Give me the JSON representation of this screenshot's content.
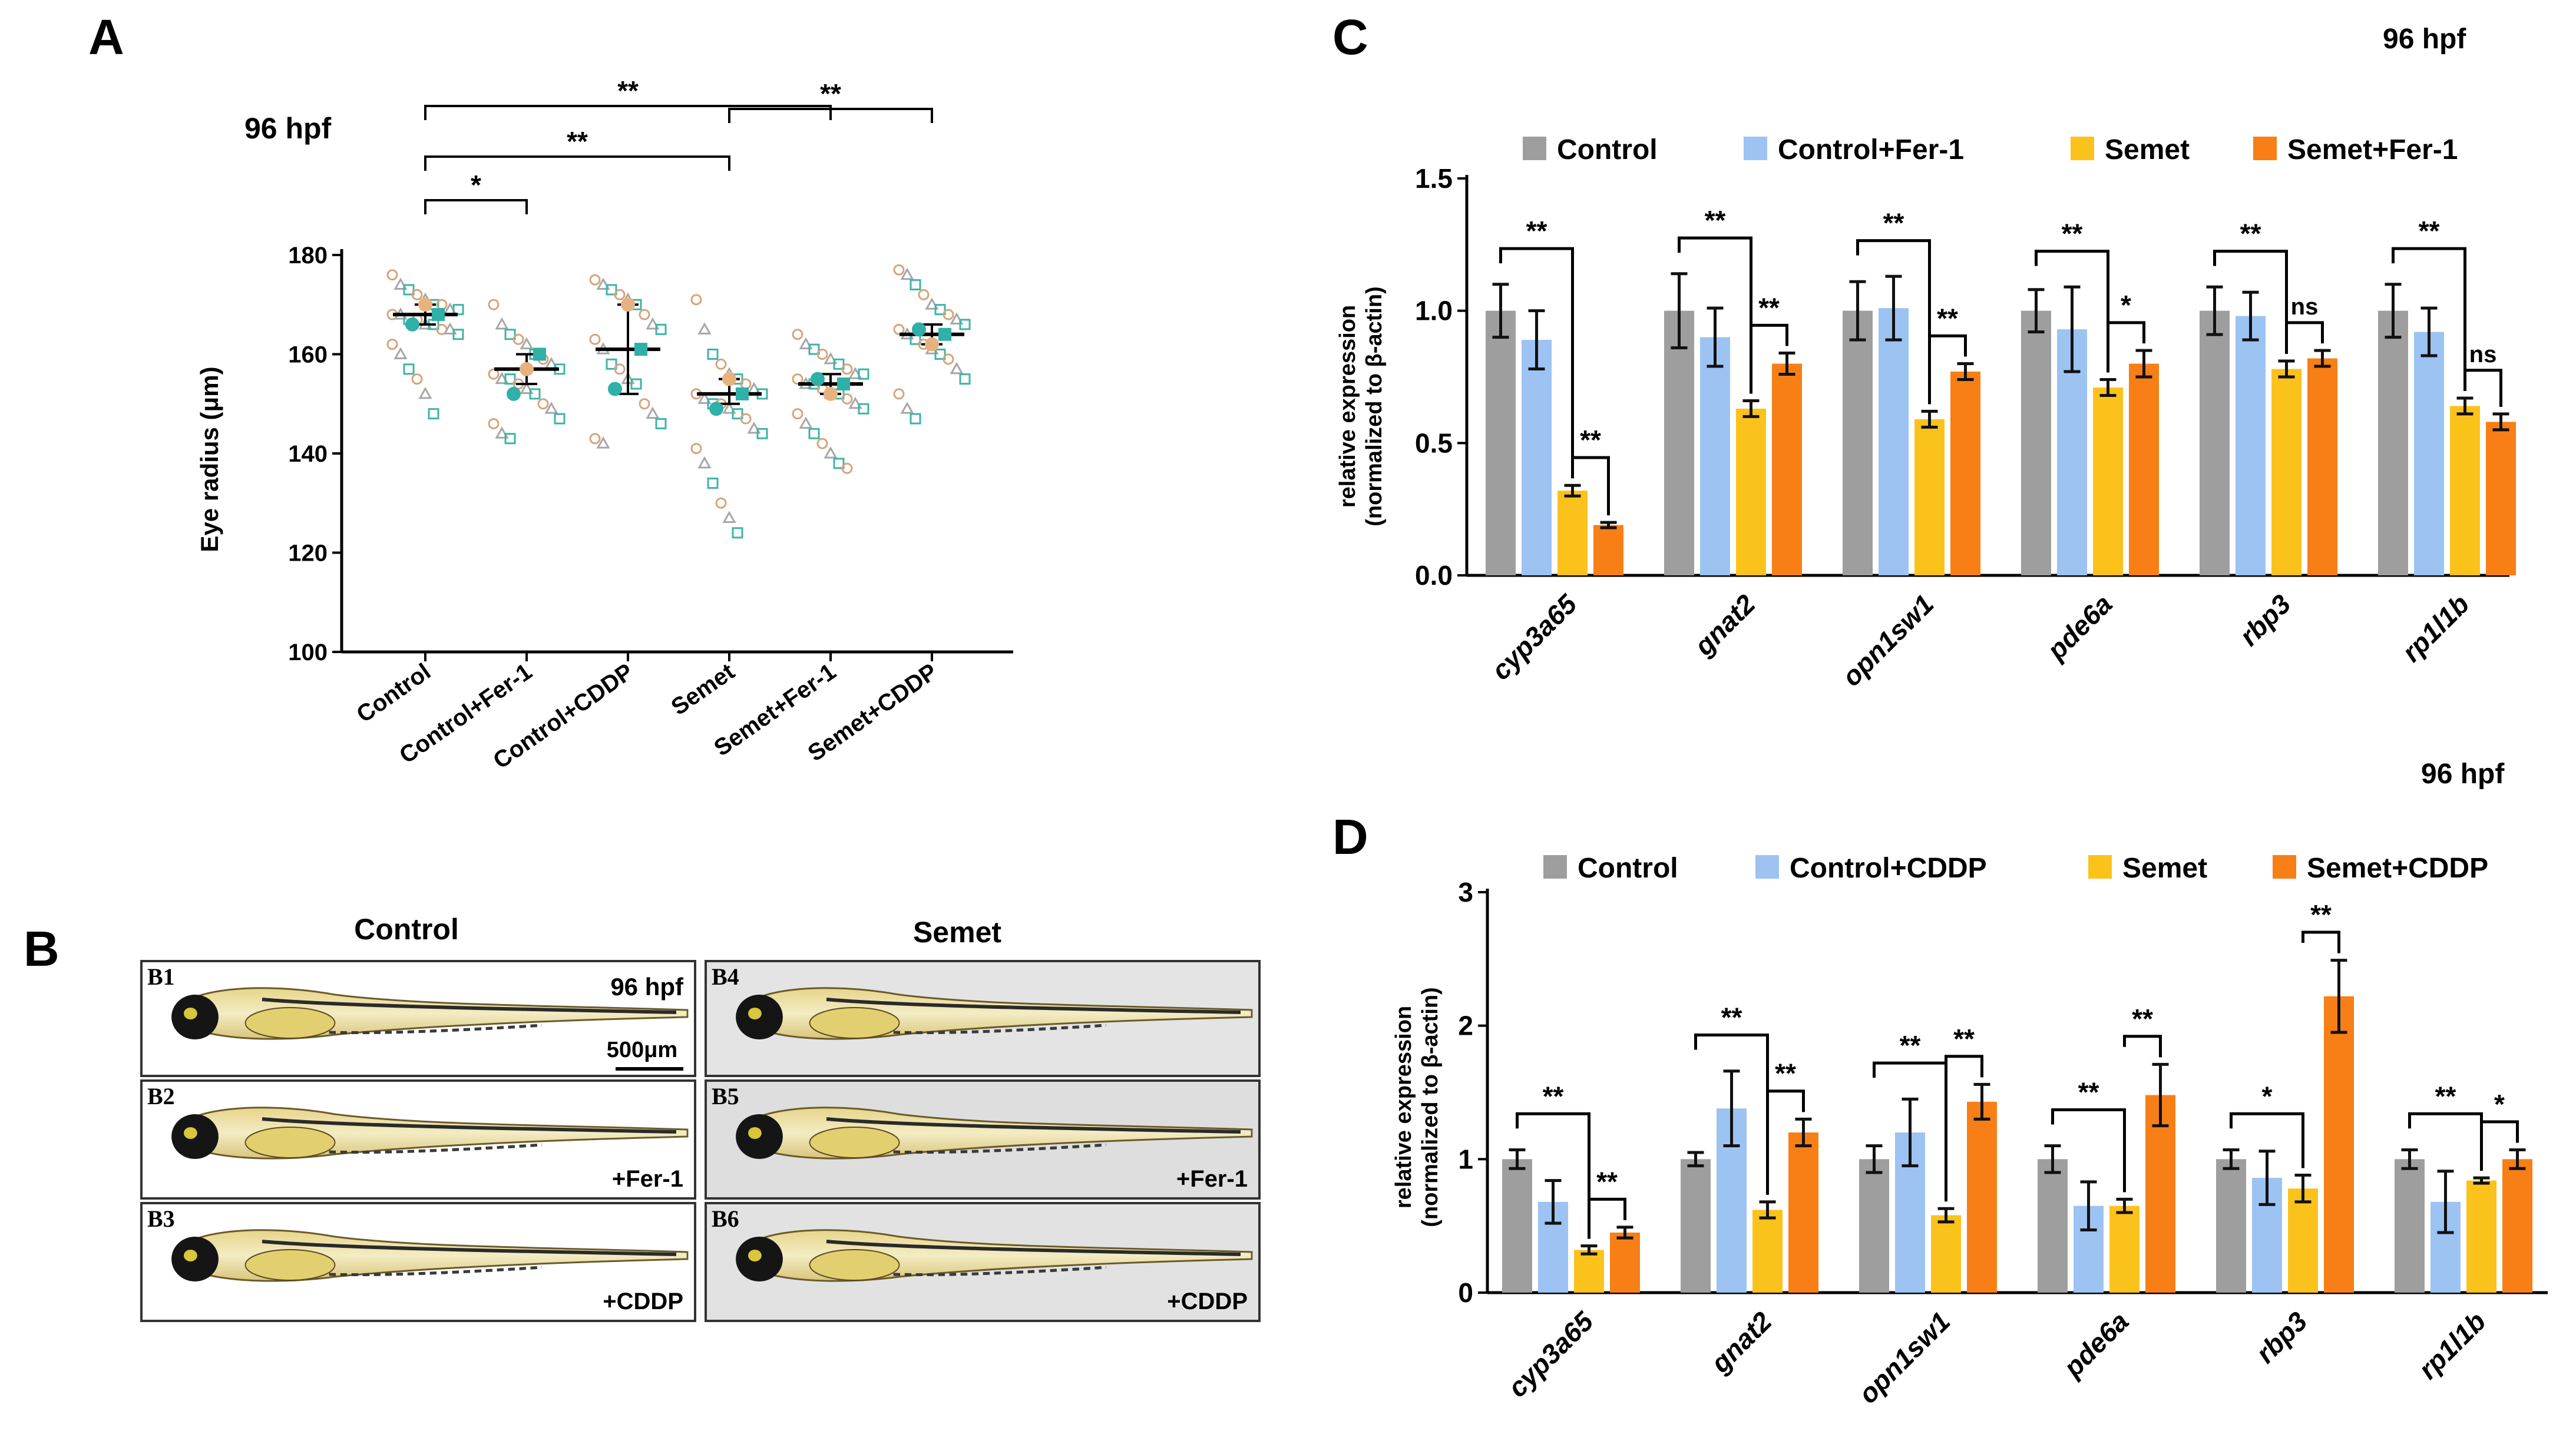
{
  "panel_letters": {
    "a": "A",
    "b": "B",
    "c": "C",
    "d": "D"
  },
  "panel_b": {
    "group_titles": [
      "Control",
      "Semet"
    ],
    "timepoint": "96 hpf",
    "scale_bar": "500μm",
    "photos": [
      {
        "id": "B1",
        "treatment": ""
      },
      {
        "id": "B2",
        "treatment": "+Fer-1"
      },
      {
        "id": "B3",
        "treatment": "+CDDP"
      },
      {
        "id": "B4",
        "treatment": ""
      },
      {
        "id": "B5",
        "treatment": "+Fer-1"
      },
      {
        "id": "B6",
        "treatment": "+CDDP"
      }
    ]
  },
  "colors": {
    "control": "#9e9e9e",
    "fer": "#9cc3f2",
    "semet": "#fcc21c",
    "semet_treat": "#f77f16",
    "teal": "#2fb0a8",
    "tan": "#e8b27e"
  },
  "chart_data": [
    {
      "panel": "A",
      "type": "scatter",
      "title": "96 hpf",
      "ylabel": "Eye radius (μm)",
      "ylim": [
        100,
        180
      ],
      "yticks": [
        100,
        120,
        140,
        160,
        180
      ],
      "categories": [
        "Control",
        "Control+Fer-1",
        "Control+CDDP",
        "Semet",
        "Semet+Fer-1",
        "Semet+CDDP"
      ],
      "means": [
        168,
        157,
        161,
        152,
        154,
        164
      ],
      "error_low": [
        166,
        154,
        152,
        150,
        152,
        162
      ],
      "error_high": [
        170,
        160,
        170,
        155,
        156,
        166
      ],
      "replicate_means": [
        [
          166,
          170,
          168
        ],
        [
          152,
          157,
          160
        ],
        [
          153,
          170,
          161
        ],
        [
          149,
          155,
          152
        ],
        [
          155,
          152,
          154
        ],
        [
          165,
          162,
          164
        ]
      ],
      "points": [
        [
          176,
          174,
          173,
          172,
          171,
          170,
          170,
          169,
          169,
          168,
          168,
          167,
          167,
          166,
          166,
          165,
          165,
          164,
          162,
          160,
          157,
          155,
          152,
          148
        ],
        [
          170,
          166,
          164,
          163,
          162,
          160,
          159,
          158,
          157,
          156,
          155,
          155,
          154,
          153,
          152,
          150,
          149,
          147,
          146,
          144,
          143
        ],
        [
          175,
          174,
          173,
          172,
          171,
          170,
          168,
          166,
          165,
          163,
          161,
          158,
          157,
          155,
          154,
          150,
          148,
          146,
          143,
          142
        ],
        [
          171,
          165,
          160,
          158,
          156,
          155,
          154,
          153,
          152,
          152,
          151,
          150,
          150,
          149,
          148,
          147,
          145,
          144,
          141,
          138,
          134,
          130,
          127,
          124
        ],
        [
          164,
          162,
          161,
          160,
          159,
          158,
          157,
          156,
          156,
          155,
          154,
          154,
          153,
          152,
          152,
          151,
          150,
          149,
          148,
          146,
          144,
          142,
          140,
          138,
          137
        ],
        [
          177,
          176,
          174,
          172,
          170,
          169,
          168,
          167,
          166,
          165,
          164,
          163,
          162,
          161,
          160,
          159,
          157,
          155,
          152,
          149,
          147
        ]
      ],
      "significance": [
        {
          "from": 0,
          "to": 1,
          "label": "*"
        },
        {
          "from": 0,
          "to": 3,
          "label": "**"
        },
        {
          "from": 0,
          "to": 4,
          "label": "**"
        },
        {
          "from": 3,
          "to": 5,
          "label": "**"
        }
      ]
    },
    {
      "panel": "C",
      "type": "bar",
      "title": "96 hpf",
      "ylabel_line1": "relative expression",
      "ylabel_line2": "(normalized to β-actin)",
      "ylim": [
        0,
        1.5
      ],
      "ytick_labels": [
        "0.0",
        "0.5",
        "1.0",
        "1.5"
      ],
      "categories": [
        "cyp3a65",
        "gnat2",
        "opn1sw1",
        "pde6a",
        "rbp3",
        "rp1l1b"
      ],
      "series": [
        {
          "name": "Control",
          "values": [
            1.0,
            1.0,
            1.0,
            1.0,
            1.0,
            1.0
          ],
          "errors": [
            0.1,
            0.14,
            0.11,
            0.08,
            0.09,
            0.1
          ]
        },
        {
          "name": "Control+Fer-1",
          "values": [
            0.89,
            0.9,
            1.01,
            0.93,
            0.98,
            0.92
          ],
          "errors": [
            0.11,
            0.11,
            0.12,
            0.16,
            0.09,
            0.09
          ]
        },
        {
          "name": "Semet",
          "values": [
            0.32,
            0.63,
            0.59,
            0.71,
            0.78,
            0.64
          ],
          "errors": [
            0.02,
            0.03,
            0.03,
            0.03,
            0.03,
            0.03
          ]
        },
        {
          "name": "Semet+Fer-1",
          "values": [
            0.19,
            0.8,
            0.77,
            0.8,
            0.82,
            0.58
          ],
          "errors": [
            0.01,
            0.04,
            0.03,
            0.05,
            0.03,
            0.03
          ]
        }
      ],
      "significance": [
        {
          "cat": 0,
          "from": 0,
          "to": 2,
          "label": "**"
        },
        {
          "cat": 0,
          "from": 2,
          "to": 3,
          "label": "**"
        },
        {
          "cat": 1,
          "from": 0,
          "to": 2,
          "label": "**"
        },
        {
          "cat": 1,
          "from": 2,
          "to": 3,
          "label": "**"
        },
        {
          "cat": 2,
          "from": 0,
          "to": 2,
          "label": "**"
        },
        {
          "cat": 2,
          "from": 2,
          "to": 3,
          "label": "**"
        },
        {
          "cat": 3,
          "from": 0,
          "to": 2,
          "label": "**"
        },
        {
          "cat": 3,
          "from": 2,
          "to": 3,
          "label": "*"
        },
        {
          "cat": 4,
          "from": 0,
          "to": 2,
          "label": "**"
        },
        {
          "cat": 4,
          "from": 2,
          "to": 3,
          "label": "ns"
        },
        {
          "cat": 5,
          "from": 0,
          "to": 2,
          "label": "**"
        },
        {
          "cat": 5,
          "from": 2,
          "to": 3,
          "label": "ns"
        }
      ]
    },
    {
      "panel": "D",
      "type": "bar",
      "title": "96 hpf",
      "ylabel_line1": "relative expression",
      "ylabel_line2": "(normalized to β-actin)",
      "ylim": [
        0,
        3
      ],
      "ytick_labels": [
        "0",
        "1",
        "2",
        "3"
      ],
      "categories": [
        "cyp3a65",
        "gnat2",
        "opn1sw1",
        "pde6a",
        "rbp3",
        "rp1l1b"
      ],
      "series": [
        {
          "name": "Control",
          "values": [
            1.0,
            1.0,
            1.0,
            1.0,
            1.0,
            1.0
          ],
          "errors": [
            0.07,
            0.05,
            0.1,
            0.1,
            0.07,
            0.07
          ]
        },
        {
          "name": "Control+CDDP",
          "values": [
            0.68,
            1.38,
            1.2,
            0.65,
            0.86,
            0.68
          ],
          "errors": [
            0.16,
            0.28,
            0.25,
            0.18,
            0.2,
            0.23
          ]
        },
        {
          "name": "Semet",
          "values": [
            0.32,
            0.62,
            0.58,
            0.65,
            0.78,
            0.84
          ],
          "errors": [
            0.03,
            0.06,
            0.05,
            0.05,
            0.1,
            0.02
          ]
        },
        {
          "name": "Semet+CDDP",
          "values": [
            0.45,
            1.2,
            1.43,
            1.48,
            2.22,
            1.0
          ],
          "errors": [
            0.04,
            0.1,
            0.13,
            0.23,
            0.27,
            0.07
          ]
        }
      ],
      "significance": [
        {
          "cat": 0,
          "from": 0,
          "to": 2,
          "label": "**"
        },
        {
          "cat": 0,
          "from": 2,
          "to": 3,
          "label": "**"
        },
        {
          "cat": 1,
          "from": 0,
          "to": 2,
          "label": "**"
        },
        {
          "cat": 1,
          "from": 2,
          "to": 3,
          "label": "**"
        },
        {
          "cat": 2,
          "from": 0,
          "to": 2,
          "label": "**"
        },
        {
          "cat": 2,
          "from": 2,
          "to": 3,
          "label": "**"
        },
        {
          "cat": 3,
          "from": 0,
          "to": 2,
          "label": "**"
        },
        {
          "cat": 3,
          "from": 2,
          "to": 3,
          "label": "**"
        },
        {
          "cat": 4,
          "from": 0,
          "to": 2,
          "label": "*"
        },
        {
          "cat": 4,
          "from": 2,
          "to": 3,
          "label": "**"
        },
        {
          "cat": 5,
          "from": 0,
          "to": 2,
          "label": "**"
        },
        {
          "cat": 5,
          "from": 2,
          "to": 3,
          "label": "*"
        }
      ]
    }
  ]
}
